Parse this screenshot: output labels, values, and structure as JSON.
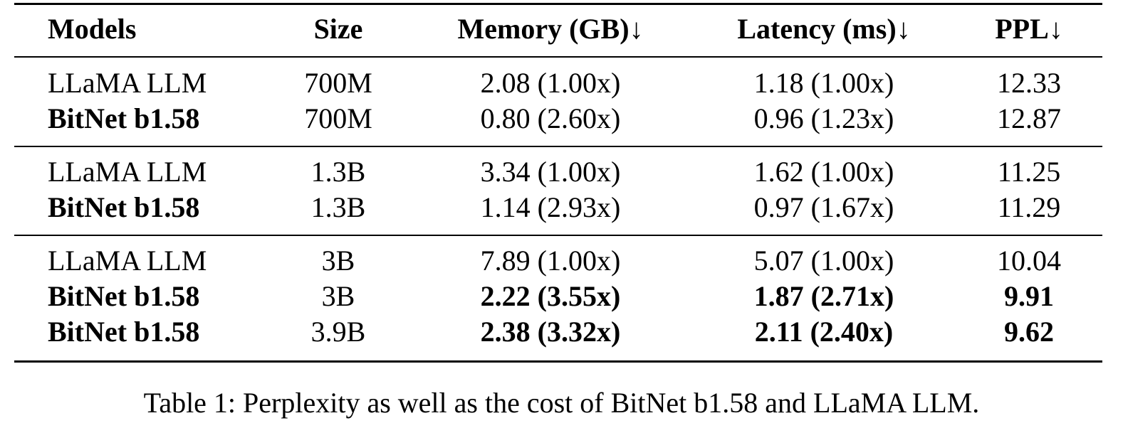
{
  "table": {
    "headers": [
      "Models",
      "Size",
      "Memory (GB)↓",
      "Latency (ms)↓",
      "PPL↓"
    ],
    "groups": [
      [
        {
          "cells": [
            "LLaMA LLM",
            "700M",
            "2.08 (1.00x)",
            "1.18 (1.00x)",
            "12.33"
          ],
          "bold": []
        },
        {
          "cells": [
            "BitNet b1.58",
            "700M",
            "0.80 (2.60x)",
            "0.96 (1.23x)",
            "12.87"
          ],
          "bold": [
            0
          ]
        }
      ],
      [
        {
          "cells": [
            "LLaMA LLM",
            "1.3B",
            "3.34 (1.00x)",
            "1.62 (1.00x)",
            "11.25"
          ],
          "bold": []
        },
        {
          "cells": [
            "BitNet b1.58",
            "1.3B",
            "1.14 (2.93x)",
            "0.97 (1.67x)",
            "11.29"
          ],
          "bold": [
            0
          ]
        }
      ],
      [
        {
          "cells": [
            "LLaMA LLM",
            "3B",
            "7.89 (1.00x)",
            "5.07 (1.00x)",
            "10.04"
          ],
          "bold": []
        },
        {
          "cells": [
            "BitNet b1.58",
            "3B",
            "2.22 (3.55x)",
            "1.87 (2.71x)",
            "9.91"
          ],
          "bold": [
            0,
            2,
            3,
            4
          ]
        },
        {
          "cells": [
            "BitNet b1.58",
            "3.9B",
            "2.38 (3.32x)",
            "2.11 (2.40x)",
            "9.62"
          ],
          "bold": [
            0,
            2,
            3,
            4
          ]
        }
      ]
    ]
  },
  "caption": "Table 1: Perplexity as well as the cost of BitNet b1.58 and LLaMA LLM."
}
